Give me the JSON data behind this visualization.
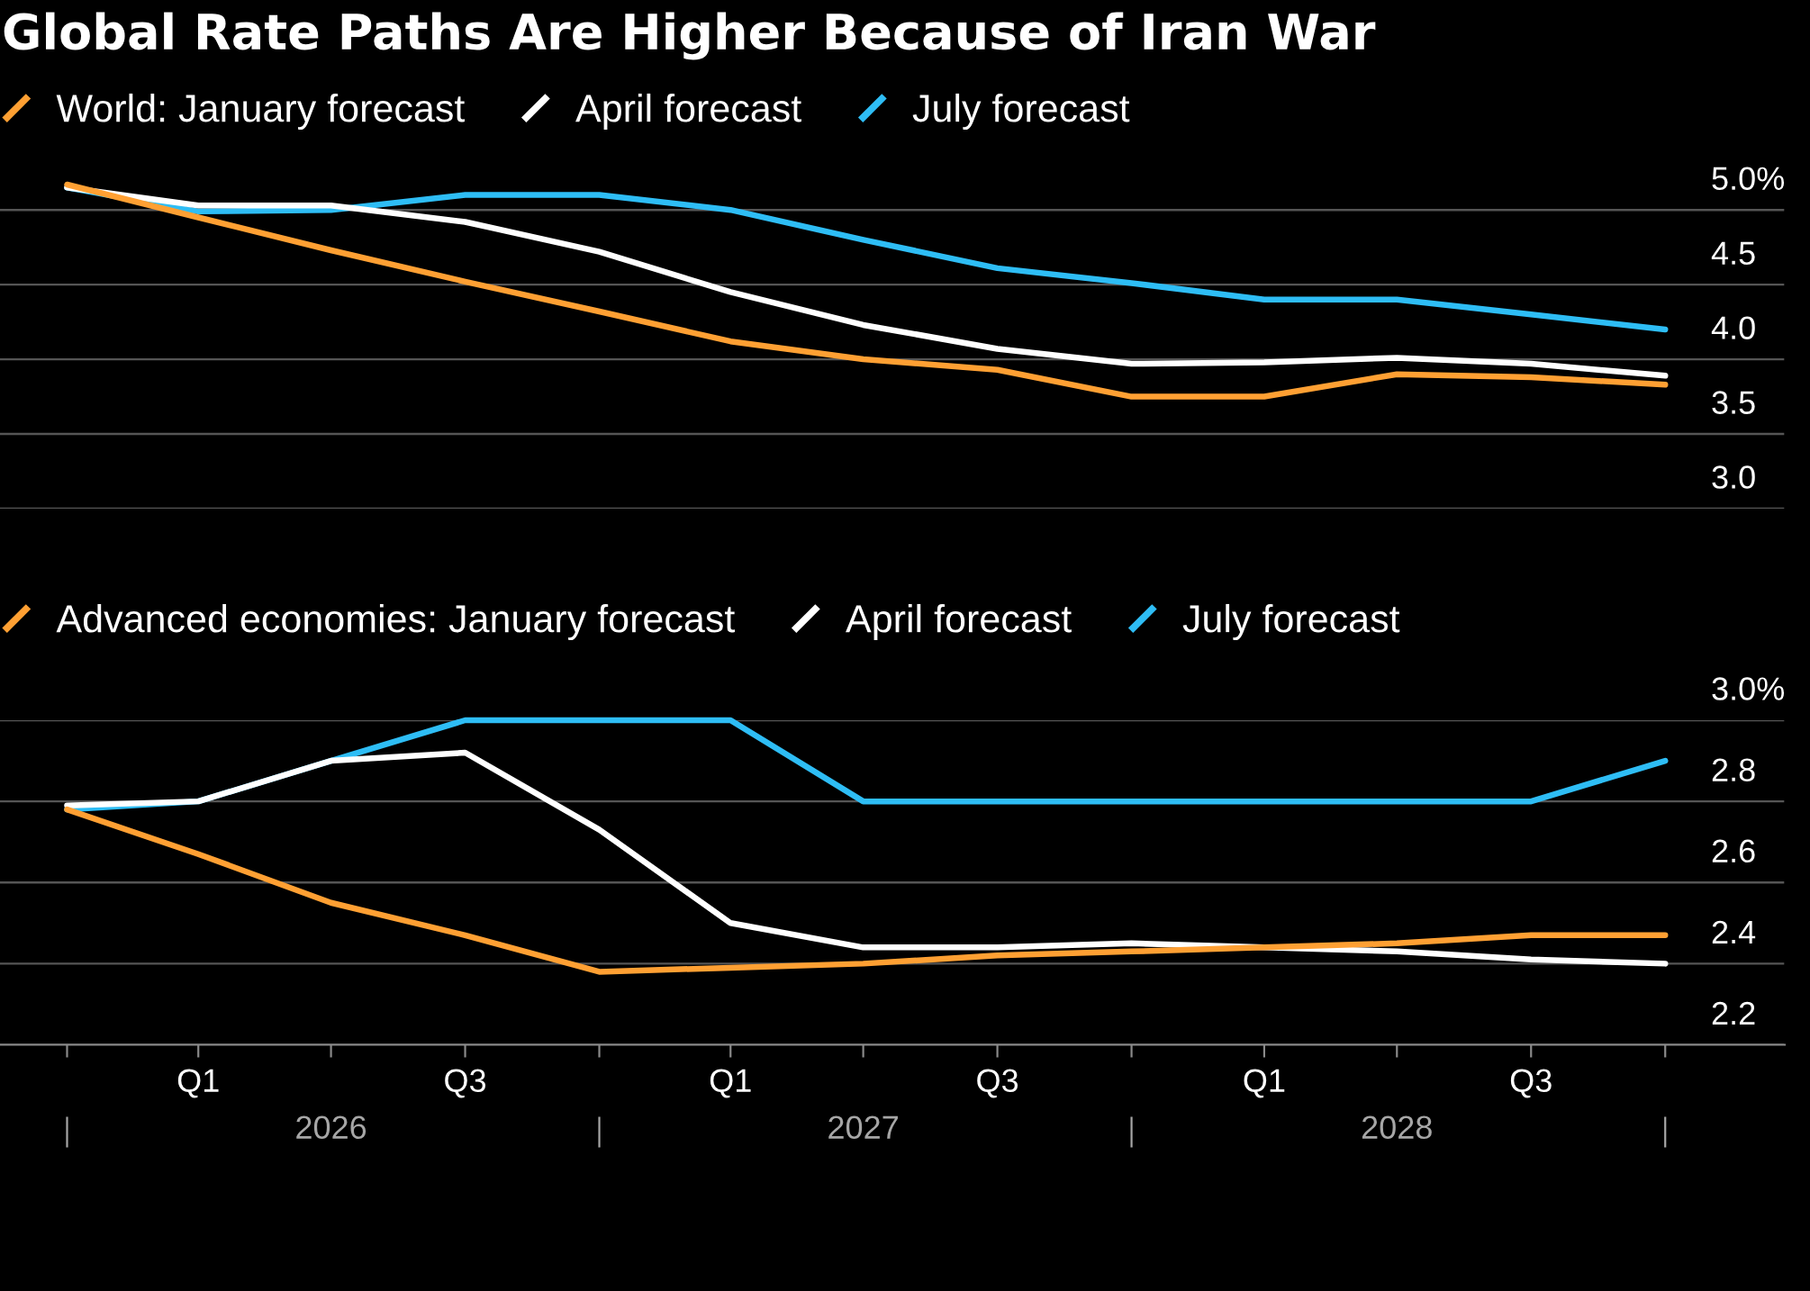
{
  "chart_data": [
    {
      "type": "line",
      "title": "Global Rate Paths Are Higher Because of Iran War",
      "x": [
        "2025-12-31",
        "2026-03-31",
        "2026-06-30",
        "2026-09-30",
        "2026-12-31",
        "2027-03-31",
        "2027-06-30",
        "2027-09-30",
        "2027-12-31",
        "2028-03-31",
        "2028-06-30",
        "2028-09-30",
        "2028-12-31"
      ],
      "series": [
        {
          "name": "World: January forecast",
          "color": "#ffa033",
          "values": [
            5.17,
            4.95,
            4.73,
            4.52,
            4.32,
            4.12,
            4.0,
            3.93,
            3.75,
            3.75,
            3.9,
            3.88,
            3.83
          ]
        },
        {
          "name": "April forecast",
          "color": "#ffffff",
          "values": [
            5.15,
            5.03,
            5.03,
            4.92,
            4.72,
            4.45,
            4.23,
            4.07,
            3.97,
            3.98,
            4.01,
            3.97,
            3.89
          ]
        },
        {
          "name": "July forecast",
          "color": "#2ebdf5",
          "values": [
            5.15,
            4.99,
            5.0,
            5.1,
            5.1,
            5.0,
            4.8,
            4.61,
            4.51,
            4.4,
            4.4,
            4.3,
            4.2
          ]
        }
      ],
      "xlim": [
        "2025-11-15",
        "2029-03-23"
      ],
      "ylim": [
        3.0,
        5.2
      ],
      "yticks": [
        {
          "value": 3,
          "label": "3.0"
        },
        3.5,
        {
          "value": 4,
          "label": "4.0"
        },
        4.5,
        {
          "value": 5,
          "label": "5.0%"
        }
      ],
      "grid": "y",
      "legend": "top left",
      "tick_labels": "y"
    },
    {
      "type": "line",
      "x": [
        "2025-12-31",
        "2026-03-31",
        "2026-06-30",
        "2026-09-30",
        "2026-12-31",
        "2027-03-31",
        "2027-06-30",
        "2027-09-30",
        "2027-12-31",
        "2028-03-31",
        "2028-06-30",
        "2028-09-30",
        "2028-12-31"
      ],
      "series": [
        {
          "name": "Advanced economies: January forecast",
          "color": "#ffa033",
          "values": [
            2.78,
            2.67,
            2.55,
            2.47,
            2.38,
            2.39,
            2.4,
            2.42,
            2.43,
            2.44,
            2.45,
            2.47,
            2.47
          ]
        },
        {
          "name": "April forecast",
          "color": "#ffffff",
          "values": [
            2.79,
            2.8,
            2.9,
            2.92,
            2.73,
            2.5,
            2.44,
            2.44,
            2.45,
            2.44,
            2.43,
            2.41,
            2.4
          ]
        },
        {
          "name": "July forecast",
          "color": "#2ebdf5",
          "values": [
            2.78,
            2.8,
            2.9,
            3.0,
            3.0,
            3.0,
            2.8,
            2.8,
            2.8,
            2.8,
            2.8,
            2.8,
            2.9
          ]
        }
      ],
      "xlim": [
        "2025-11-15",
        "2029-03-23"
      ],
      "xticks": [
        {
          "value": "2025-12-31",
          "label": null
        },
        {
          "value": "2026-03-31",
          "label": "Q1"
        },
        {
          "value": "2026-06-30",
          "label": null
        },
        {
          "value": "2026-09-30",
          "label": "Q3"
        },
        {
          "value": "2026-12-31",
          "label": null
        },
        {
          "value": "2027-03-31",
          "label": "Q1"
        },
        {
          "value": "2027-06-30",
          "label": null
        },
        {
          "value": "2027-09-30",
          "label": "Q3"
        },
        {
          "value": "2027-12-31",
          "label": null
        },
        {
          "value": "2028-03-31",
          "label": "Q1"
        },
        {
          "value": "2028-06-30",
          "label": null
        },
        {
          "value": "2028-09-30",
          "label": "Q3"
        },
        {
          "value": "2028-12-31",
          "label": null
        }
      ],
      "x2lim": [
        "2025-11-15",
        "2029-03-23"
      ],
      "x2ticks": [
        {
          "value": "2025-12-31",
          "label": null
        },
        {
          "value": "2026-06-30",
          "label": "2026"
        },
        {
          "value": "2026-12-31",
          "label": null
        },
        {
          "value": "2027-06-30",
          "label": "2027"
        },
        {
          "value": "2027-12-31",
          "label": null
        },
        {
          "value": "2028-06-30",
          "label": "2028"
        },
        {
          "value": "2028-12-31",
          "label": null
        }
      ],
      "ylim": [
        2.2,
        3.0
      ],
      "yticks": [
        2.2,
        2.4,
        2.6,
        2.8,
        {
          "value": 3,
          "label": "3.0%"
        }
      ],
      "grid": "y",
      "legend": "top left"
    }
  ]
}
